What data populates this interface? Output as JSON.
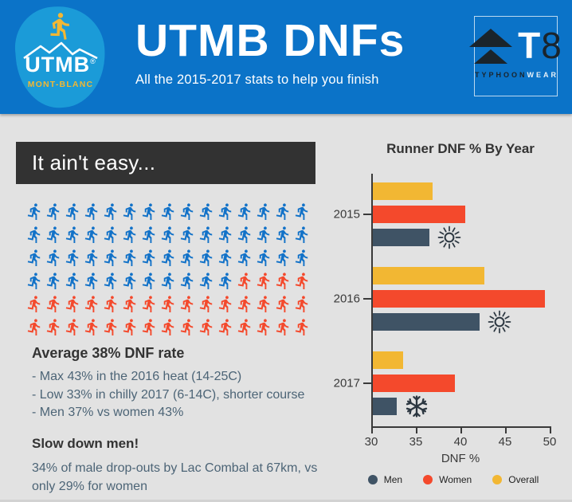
{
  "header": {
    "title": "UTMB DNFs",
    "subtitle": "All the 2015-2017 stats to help you finish",
    "utmb_logo": {
      "name": "UTMB",
      "registered_mark": "®",
      "subtitle": "MONT-BLANC"
    },
    "t8_logo": {
      "t": "T",
      "eight": "8",
      "brand_dark": "TYPHOON",
      "brand_light": "WEAR"
    }
  },
  "colors": {
    "header_blue": "#0B73C8",
    "logo_blue": "#1B9BD8",
    "body_gray": "#E2E2E2",
    "headline_box": "#323232",
    "text_dark": "#333333",
    "text_slate": "#4C6476",
    "men": "#3F5365",
    "women": "#F4492C",
    "overall": "#F2B733",
    "accent_yellow": "#F2B733",
    "icon_dark": "#2B3640"
  },
  "left_panel": {
    "headline": "It ain't easy...",
    "pictogram": {
      "rows": 6,
      "per_row": 15,
      "total": 90,
      "finisher_count": 56,
      "dnf_count": 34,
      "finisher_color": "#1272C8",
      "dnf_color": "#F4492C",
      "icon": "runner-icon"
    },
    "stats": {
      "heading": "Average 38% DNF rate",
      "bullets": [
        "- Max 43% in the 2016 heat (14-25C)",
        "- Low 33% in chilly 2017 (6-14C), shorter course",
        "- Men 37% vs women 43%"
      ]
    },
    "callout": {
      "heading": "Slow down men!",
      "body": "34% of male drop-outs by Lac Combal at 67km, vs only 29% for women"
    }
  },
  "chart_data": {
    "type": "bar",
    "orientation": "horizontal",
    "title": "Runner DNF % By Year",
    "xlabel": "DNF %",
    "xlim": [
      30,
      50
    ],
    "xticks": [
      30,
      35,
      40,
      45,
      50
    ],
    "categories": [
      "2015",
      "2016",
      "2017"
    ],
    "bar_order": [
      "Overall",
      "Women",
      "Men"
    ],
    "series": [
      {
        "name": "Men",
        "color": "#3F5365",
        "values": [
          36.3,
          42.0,
          32.7
        ]
      },
      {
        "name": "Women",
        "color": "#F4492C",
        "values": [
          40.4,
          49.3,
          39.2
        ]
      },
      {
        "name": "Overall",
        "color": "#F2B733",
        "values": [
          36.7,
          42.5,
          33.4
        ]
      }
    ],
    "annotations": [
      {
        "category": "2015",
        "series": "Men",
        "icon": "sun"
      },
      {
        "category": "2016",
        "series": "Men",
        "icon": "sun"
      },
      {
        "category": "2017",
        "series": "Men",
        "icon": "snowflake"
      }
    ],
    "legend": [
      "Men",
      "Women",
      "Overall"
    ],
    "legend_position": "bottom",
    "grid": false
  }
}
